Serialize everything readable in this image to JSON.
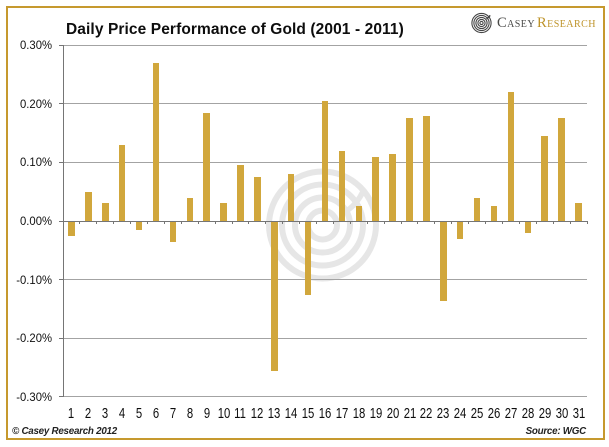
{
  "header": {
    "title": "Daily Price Performance of Gold (2001 - 2011)",
    "logo": {
      "icon": "spiral-rings-icon",
      "name_first": "Casey",
      "name_second": "Research"
    }
  },
  "footer": {
    "copyright": "© Casey Research 2012",
    "source": "Source: WGC"
  },
  "chart_data": {
    "type": "bar",
    "title": "Daily Price Performance of Gold (2001 - 2011)",
    "categories": [
      "1",
      "2",
      "3",
      "4",
      "5",
      "6",
      "7",
      "8",
      "9",
      "10",
      "11",
      "12",
      "13",
      "14",
      "15",
      "16",
      "17",
      "18",
      "19",
      "20",
      "21",
      "22",
      "23",
      "24",
      "25",
      "26",
      "27",
      "28",
      "29",
      "30",
      "31"
    ],
    "values": [
      -0.025,
      0.05,
      0.03,
      0.13,
      -0.015,
      0.27,
      -0.035,
      0.04,
      0.185,
      0.03,
      0.095,
      0.075,
      -0.255,
      0.08,
      -0.125,
      0.205,
      0.12,
      0.025,
      0.11,
      0.115,
      0.175,
      0.18,
      -0.135,
      -0.03,
      0.04,
      0.025,
      0.22,
      -0.02,
      0.145,
      0.175,
      0.03
    ],
    "xlabel": "",
    "ylabel": "",
    "y_tick_labels": [
      "0.30%",
      "0.20%",
      "0.10%",
      "0.00%",
      "-0.10%",
      "-0.20%",
      "-0.30%"
    ],
    "ylim": [
      -0.3,
      0.3
    ],
    "y_gridline_step": 0.1,
    "grid": true,
    "legend": false,
    "bar_color": "#D1A73C",
    "units": "percent"
  },
  "colors": {
    "bar_gold": "#D1A73C",
    "frame_gold": "#C6992E",
    "logo_gold": "#BE9329",
    "logo_dark": "#4A4A48",
    "gridline_gray": "#A3A3A3",
    "axis_gray": "#757575",
    "watermark_gray": "#DCDCDC"
  }
}
